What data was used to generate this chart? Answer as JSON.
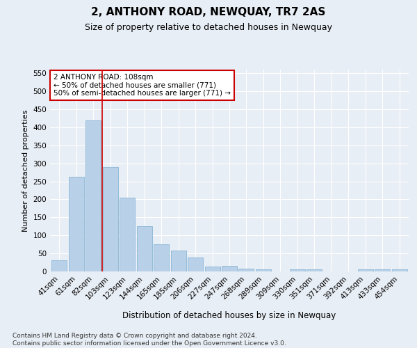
{
  "title": "2, ANTHONY ROAD, NEWQUAY, TR7 2AS",
  "subtitle": "Size of property relative to detached houses in Newquay",
  "xlabel": "Distribution of detached houses by size in Newquay",
  "ylabel": "Number of detached properties",
  "categories": [
    "41sqm",
    "61sqm",
    "82sqm",
    "103sqm",
    "123sqm",
    "144sqm",
    "165sqm",
    "185sqm",
    "206sqm",
    "227sqm",
    "247sqm",
    "268sqm",
    "289sqm",
    "309sqm",
    "330sqm",
    "351sqm",
    "371sqm",
    "392sqm",
    "413sqm",
    "433sqm",
    "454sqm"
  ],
  "values": [
    30,
    263,
    420,
    289,
    205,
    125,
    75,
    58,
    38,
    14,
    15,
    7,
    5,
    0,
    5,
    5,
    0,
    0,
    5,
    5,
    5
  ],
  "bar_color": "#b8d0e8",
  "bar_edge_color": "#7aaed0",
  "vline_color": "#cc0000",
  "vline_x_index": 3,
  "annotation_text": "2 ANTHONY ROAD: 108sqm\n← 50% of detached houses are smaller (771)\n50% of semi-detached houses are larger (771) →",
  "annotation_box_color": "white",
  "annotation_box_edge_color": "#cc0000",
  "ylim": [
    0,
    560
  ],
  "yticks": [
    0,
    50,
    100,
    150,
    200,
    250,
    300,
    350,
    400,
    450,
    500,
    550
  ],
  "footnote": "Contains HM Land Registry data © Crown copyright and database right 2024.\nContains public sector information licensed under the Open Government Licence v3.0.",
  "background_color": "#e8eef5",
  "grid_color": "#ffffff",
  "title_fontsize": 11,
  "subtitle_fontsize": 9,
  "xlabel_fontsize": 8.5,
  "ylabel_fontsize": 8,
  "tick_fontsize": 7.5,
  "footnote_fontsize": 6.5,
  "annotation_fontsize": 7.5
}
